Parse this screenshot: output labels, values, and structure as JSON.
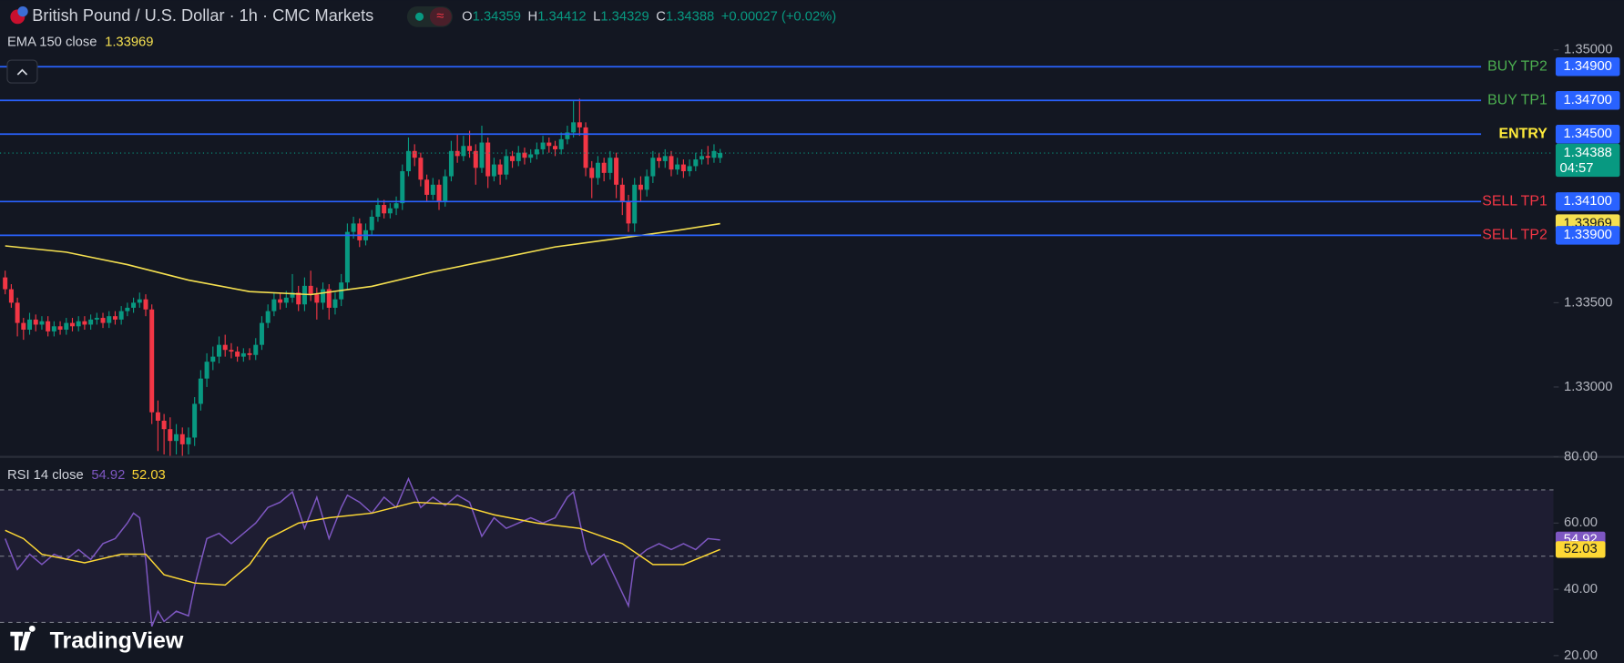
{
  "chart_data": [
    {
      "type": "candlestick",
      "title": "British Pound / U.S. Dollar · 1h · CMC Markets",
      "ohlc_letters": [
        "O",
        "H",
        "L",
        "C"
      ],
      "change": "+0.00027 (+0.02%)",
      "countdown": "04:57",
      "up_color": "#089981",
      "down_color": "#f23645",
      "ylim": [
        1.32592,
        1.35295
      ],
      "yticks": [
        {
          "value": 1.35,
          "label": "1.35000"
        },
        {
          "value": 1.335,
          "label": "1.33500"
        },
        {
          "value": 1.33,
          "label": "1.33000"
        }
      ],
      "open": [
        1.3365,
        1.3358,
        1.335,
        1.3338,
        1.3334,
        1.334,
        1.3337,
        1.3339,
        1.3333,
        1.3336,
        1.3334,
        1.3338,
        1.3336,
        1.3339,
        1.3337,
        1.334,
        1.3341,
        1.3338,
        1.3342,
        1.334,
        1.3345,
        1.3347,
        1.335,
        1.3352,
        1.3346,
        1.3285,
        1.328,
        1.3275,
        1.3268,
        1.3272,
        1.3266,
        1.327,
        1.329,
        1.3305,
        1.3315,
        1.3318,
        1.3325,
        1.3322,
        1.3321,
        1.3318,
        1.332,
        1.3319,
        1.3325,
        1.3338,
        1.3345,
        1.3352,
        1.335,
        1.3353,
        1.3356,
        1.3349,
        1.336,
        1.3355,
        1.335,
        1.3358,
        1.3347,
        1.3352,
        1.3362,
        1.3392,
        1.3397,
        1.3387,
        1.3393,
        1.3401,
        1.3408,
        1.3403,
        1.3406,
        1.3409,
        1.3428,
        1.344,
        1.3436,
        1.3423,
        1.3414,
        1.342,
        1.341,
        1.3425,
        1.344,
        1.3437,
        1.3443,
        1.344,
        1.343,
        1.3445,
        1.3425,
        1.3432,
        1.3426,
        1.3437,
        1.3434,
        1.3439,
        1.3436,
        1.3438,
        1.3441,
        1.3445,
        1.3443,
        1.3441,
        1.3447,
        1.3451,
        1.3457,
        1.3454,
        1.343,
        1.3424,
        1.3433,
        1.3427,
        1.3436,
        1.342,
        1.341,
        1.3397,
        1.342,
        1.3417,
        1.3425,
        1.3436,
        1.3434,
        1.3437,
        1.3429,
        1.3432,
        1.3428,
        1.3431,
        1.3435,
        1.3437,
        1.3436,
        1.34359
      ],
      "high": [
        1.3369,
        1.3361,
        1.3353,
        1.3341,
        1.3344,
        1.3343,
        1.3342,
        1.3342,
        1.3339,
        1.3339,
        1.3341,
        1.3341,
        1.3342,
        1.3342,
        1.3343,
        1.3344,
        1.3344,
        1.3345,
        1.3345,
        1.3348,
        1.335,
        1.3353,
        1.3356,
        1.3355,
        1.3349,
        1.3292,
        1.3284,
        1.3282,
        1.3278,
        1.3276,
        1.3276,
        1.3294,
        1.331,
        1.332,
        1.3324,
        1.333,
        1.3331,
        1.3326,
        1.3324,
        1.3323,
        1.3323,
        1.3329,
        1.3342,
        1.3349,
        1.3356,
        1.3356,
        1.3357,
        1.3367,
        1.336,
        1.3365,
        1.3369,
        1.3359,
        1.3362,
        1.3361,
        1.3356,
        1.3367,
        1.3397,
        1.3401,
        1.34,
        1.3397,
        1.3405,
        1.3412,
        1.3411,
        1.3409,
        1.3413,
        1.3432,
        1.3448,
        1.3444,
        1.3439,
        1.3426,
        1.3424,
        1.3423,
        1.3429,
        1.3446,
        1.345,
        1.3449,
        1.3452,
        1.3444,
        1.3455,
        1.3448,
        1.3436,
        1.3435,
        1.3441,
        1.344,
        1.3443,
        1.3442,
        1.3441,
        1.3445,
        1.3449,
        1.3448,
        1.3446,
        1.3451,
        1.3455,
        1.347,
        1.3471,
        1.3457,
        1.3434,
        1.3437,
        1.3436,
        1.344,
        1.3439,
        1.3424,
        1.3414,
        1.3424,
        1.3425,
        1.3429,
        1.344,
        1.3439,
        1.3441,
        1.344,
        1.3436,
        1.3435,
        1.3435,
        1.3439,
        1.3441,
        1.3443,
        1.3444,
        1.34412
      ],
      "low": [
        1.3355,
        1.3347,
        1.333,
        1.3328,
        1.3331,
        1.3333,
        1.3334,
        1.333,
        1.333,
        1.3331,
        1.3331,
        1.3333,
        1.3333,
        1.3334,
        1.3334,
        1.3337,
        1.3335,
        1.3335,
        1.3337,
        1.3337,
        1.3342,
        1.3344,
        1.3347,
        1.3342,
        1.3278,
        1.3262,
        1.326,
        1.3259,
        1.326,
        1.3259,
        1.326,
        1.3265,
        1.3286,
        1.33,
        1.331,
        1.3314,
        1.3318,
        1.3317,
        1.3315,
        1.3315,
        1.3316,
        1.3316,
        1.3322,
        1.3335,
        1.3342,
        1.3346,
        1.3347,
        1.335,
        1.3345,
        1.3345,
        1.3351,
        1.334,
        1.3346,
        1.334,
        1.3343,
        1.3348,
        1.3358,
        1.3388,
        1.3383,
        1.3384,
        1.339,
        1.3398,
        1.34,
        1.34,
        1.3402,
        1.3405,
        1.3425,
        1.3431,
        1.3419,
        1.341,
        1.3411,
        1.3405,
        1.3407,
        1.3422,
        1.3433,
        1.3434,
        1.3436,
        1.342,
        1.3427,
        1.3418,
        1.3422,
        1.342,
        1.3423,
        1.343,
        1.3431,
        1.3432,
        1.3433,
        1.3435,
        1.3438,
        1.3439,
        1.3437,
        1.3438,
        1.3444,
        1.3448,
        1.3449,
        1.3425,
        1.3412,
        1.342,
        1.3422,
        1.3423,
        1.3412,
        1.3402,
        1.3392,
        1.3392,
        1.341,
        1.3413,
        1.3421,
        1.343,
        1.343,
        1.3425,
        1.3426,
        1.3424,
        1.3425,
        1.3428,
        1.3432,
        1.3432,
        1.3433,
        1.34329
      ],
      "close": [
        1.3358,
        1.335,
        1.3338,
        1.3334,
        1.334,
        1.3337,
        1.3339,
        1.3333,
        1.3336,
        1.3334,
        1.3338,
        1.3336,
        1.3339,
        1.3337,
        1.334,
        1.3341,
        1.3338,
        1.3342,
        1.334,
        1.3345,
        1.3347,
        1.335,
        1.3352,
        1.3346,
        1.3285,
        1.328,
        1.3275,
        1.3268,
        1.3272,
        1.3266,
        1.327,
        1.329,
        1.3305,
        1.3315,
        1.3318,
        1.3325,
        1.3322,
        1.3321,
        1.3318,
        1.332,
        1.3319,
        1.3325,
        1.3338,
        1.3345,
        1.3352,
        1.335,
        1.3353,
        1.3356,
        1.3349,
        1.336,
        1.3355,
        1.335,
        1.3358,
        1.3347,
        1.3352,
        1.3362,
        1.3392,
        1.3397,
        1.3387,
        1.3393,
        1.3401,
        1.3408,
        1.3403,
        1.3406,
        1.3409,
        1.3428,
        1.344,
        1.3436,
        1.3423,
        1.3414,
        1.342,
        1.341,
        1.3425,
        1.344,
        1.3437,
        1.3443,
        1.344,
        1.343,
        1.3445,
        1.3425,
        1.3432,
        1.3426,
        1.3437,
        1.3434,
        1.3439,
        1.3436,
        1.3438,
        1.3441,
        1.3445,
        1.3443,
        1.3441,
        1.3447,
        1.3451,
        1.3457,
        1.3454,
        1.343,
        1.3424,
        1.3433,
        1.3427,
        1.3436,
        1.342,
        1.341,
        1.3397,
        1.342,
        1.3417,
        1.3425,
        1.3436,
        1.3434,
        1.3437,
        1.3429,
        1.3432,
        1.3428,
        1.3431,
        1.3435,
        1.3437,
        1.3436,
        1.344,
        1.34388
      ],
      "levels": [
        {
          "name": "BUY TP2",
          "value": 1.349,
          "label": "1.34900",
          "color": "#4caf50"
        },
        {
          "name": "BUY TP1",
          "value": 1.347,
          "label": "1.34700",
          "color": "#4caf50"
        },
        {
          "name": "ENTRY",
          "value": 1.345,
          "label": "1.34500",
          "color": "#ffeb3b"
        },
        {
          "name": "SELL TP1",
          "value": 1.341,
          "label": "1.34100",
          "color": "#f23645"
        },
        {
          "name": "SELL TP2",
          "value": 1.339,
          "label": "1.33900",
          "color": "#f23645"
        }
      ],
      "level_line_color": "#2962ff",
      "ema": {
        "name": "EMA 150 close",
        "color": "#f5e050",
        "x": [
          0,
          10,
          20,
          30,
          40,
          50,
          60,
          70,
          80,
          90,
          100,
          110,
          117
        ],
        "values": [
          1.33837,
          1.338,
          1.33726,
          1.33634,
          1.33566,
          1.33548,
          1.33597,
          1.33683,
          1.33757,
          1.33831,
          1.3388,
          1.33929,
          1.33969
        ]
      }
    },
    {
      "type": "line",
      "title": "RSI 14 close",
      "ylim": [
        17.8,
        80
      ],
      "yticks": [
        {
          "value": 80,
          "label": "80.00"
        },
        {
          "value": 60,
          "label": "60.00"
        },
        {
          "value": 40,
          "label": "40.00"
        },
        {
          "value": 20,
          "label": "20.00"
        }
      ],
      "band": [
        30,
        70
      ],
      "midline": 50,
      "series": [
        {
          "color": "#7e57c2",
          "x": [
            0,
            2,
            4,
            6,
            8,
            10,
            12,
            14,
            16,
            18,
            20,
            21,
            22,
            23,
            24,
            25,
            26,
            28,
            30,
            31,
            33,
            35,
            37,
            39,
            41,
            43,
            45,
            47,
            49,
            51,
            53,
            55,
            56,
            58,
            60,
            62,
            64,
            66,
            68,
            70,
            72,
            74,
            76,
            78,
            80,
            82,
            84,
            86,
            88,
            90,
            92,
            93,
            95,
            96,
            98,
            100,
            102,
            103,
            105,
            107,
            109,
            111,
            113,
            115,
            117
          ],
          "values": [
            55.3,
            46,
            50.6,
            47.5,
            50.6,
            49,
            52,
            49,
            53.8,
            55.3,
            60,
            63,
            61.6,
            49,
            28.8,
            33.4,
            30.3,
            33.4,
            32,
            41,
            55.3,
            56.9,
            53.8,
            56.9,
            60,
            64.7,
            66.3,
            69.4,
            58.4,
            67.8,
            55.3,
            64.7,
            68.4,
            66.3,
            63,
            67.8,
            64.7,
            73.4,
            64.7,
            67.8,
            65.3,
            68.4,
            66.3,
            56,
            61.6,
            58.4,
            60,
            61.6,
            60,
            61.6,
            67.8,
            69.4,
            52,
            47.5,
            50.6,
            42.8,
            35,
            49,
            52,
            53.8,
            52,
            53.8,
            52,
            55.3,
            54.92
          ]
        },
        {
          "color": "#fdd835",
          "x": [
            0,
            3,
            6,
            13,
            19,
            23,
            26,
            31,
            36,
            40,
            43,
            48,
            53,
            60,
            67,
            74,
            80,
            87,
            94,
            101,
            106,
            111,
            117
          ],
          "values": [
            57.8,
            55.3,
            50.6,
            48,
            50.6,
            50.6,
            44.4,
            41.9,
            41.3,
            47.5,
            55.3,
            60,
            61.6,
            63,
            66.3,
            65.6,
            62.5,
            60,
            58.4,
            53.8,
            47.5,
            47.5,
            52.03
          ]
        }
      ]
    }
  ],
  "watermark": "TradingView"
}
